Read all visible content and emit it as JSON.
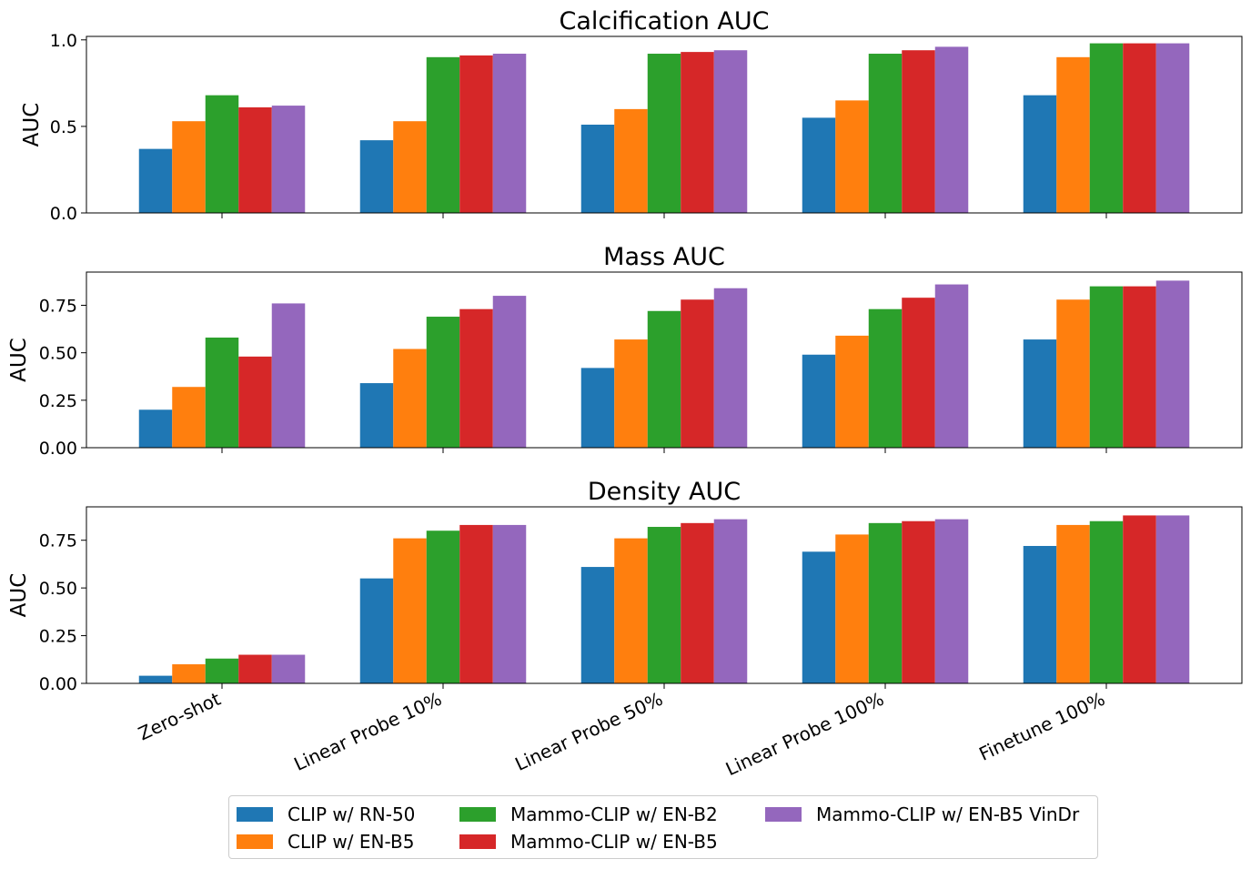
{
  "chart_data": [
    {
      "type": "bar",
      "title": "Calcification AUC",
      "ylabel": "AUC",
      "xlabel": "",
      "ylim": [
        0,
        1.02
      ],
      "yticks": [
        "0.0",
        "0.5",
        "1.0"
      ],
      "categories": [
        "Zero-shot",
        "Linear Probe 10%",
        "Linear Probe 50%",
        "Linear Probe 100%",
        "Finetune 100%"
      ],
      "series": [
        {
          "name": "CLIP w/ RN-50",
          "values": [
            0.37,
            0.42,
            0.51,
            0.55,
            0.68
          ]
        },
        {
          "name": "CLIP w/ EN-B5",
          "values": [
            0.53,
            0.53,
            0.6,
            0.65,
            0.9
          ]
        },
        {
          "name": "Mammo-CLIP w/ EN-B2",
          "values": [
            0.68,
            0.9,
            0.92,
            0.92,
            0.98
          ]
        },
        {
          "name": "Mammo-CLIP w/ EN-B5",
          "values": [
            0.61,
            0.91,
            0.93,
            0.94,
            0.98
          ]
        },
        {
          "name": "Mammo-CLIP w/ EN-B5 VinDr",
          "values": [
            0.62,
            0.92,
            0.94,
            0.96,
            0.98
          ]
        }
      ]
    },
    {
      "type": "bar",
      "title": "Mass AUC",
      "ylabel": "AUC",
      "xlabel": "",
      "ylim": [
        0,
        0.925
      ],
      "yticks": [
        "0.00",
        "0.25",
        "0.50",
        "0.75"
      ],
      "categories": [
        "Zero-shot",
        "Linear Probe 10%",
        "Linear Probe 50%",
        "Linear Probe 100%",
        "Finetune 100%"
      ],
      "series": [
        {
          "name": "CLIP w/ RN-50",
          "values": [
            0.2,
            0.34,
            0.42,
            0.49,
            0.57
          ]
        },
        {
          "name": "CLIP w/ EN-B5",
          "values": [
            0.32,
            0.52,
            0.57,
            0.59,
            0.78
          ]
        },
        {
          "name": "Mammo-CLIP w/ EN-B2",
          "values": [
            0.58,
            0.69,
            0.72,
            0.73,
            0.85
          ]
        },
        {
          "name": "Mammo-CLIP w/ EN-B5",
          "values": [
            0.48,
            0.73,
            0.78,
            0.79,
            0.85
          ]
        },
        {
          "name": "Mammo-CLIP w/ EN-B5 VinDr",
          "values": [
            0.76,
            0.8,
            0.84,
            0.86,
            0.88
          ]
        }
      ]
    },
    {
      "type": "bar",
      "title": "Density AUC",
      "ylabel": "AUC",
      "xlabel": "",
      "ylim": [
        0,
        0.925
      ],
      "yticks": [
        "0.00",
        "0.25",
        "0.50",
        "0.75"
      ],
      "categories": [
        "Zero-shot",
        "Linear Probe 10%",
        "Linear Probe 50%",
        "Linear Probe 100%",
        "Finetune 100%"
      ],
      "series": [
        {
          "name": "CLIP w/ RN-50",
          "values": [
            0.04,
            0.55,
            0.61,
            0.69,
            0.72
          ]
        },
        {
          "name": "CLIP w/ EN-B5",
          "values": [
            0.1,
            0.76,
            0.76,
            0.78,
            0.83
          ]
        },
        {
          "name": "Mammo-CLIP w/ EN-B2",
          "values": [
            0.13,
            0.8,
            0.82,
            0.84,
            0.85
          ]
        },
        {
          "name": "Mammo-CLIP w/ EN-B5",
          "values": [
            0.15,
            0.83,
            0.84,
            0.85,
            0.88
          ]
        },
        {
          "name": "Mammo-CLIP w/ EN-B5 VinDr",
          "values": [
            0.15,
            0.83,
            0.86,
            0.86,
            0.88
          ]
        }
      ]
    }
  ],
  "colors": [
    "#1f77b4",
    "#ff7f0e",
    "#2ca02c",
    "#d62728",
    "#9467bd"
  ],
  "legend": {
    "placement": "bottom-center",
    "items": [
      {
        "label": "CLIP w/ RN-50",
        "color": "#1f77b4"
      },
      {
        "label": "CLIP w/ EN-B5",
        "color": "#ff7f0e"
      },
      {
        "label": "Mammo-CLIP w/ EN-B2",
        "color": "#2ca02c"
      },
      {
        "label": "Mammo-CLIP w/ EN-B5",
        "color": "#d62728"
      },
      {
        "label": "Mammo-CLIP w/ EN-B5 VinDr",
        "color": "#9467bd"
      }
    ]
  }
}
